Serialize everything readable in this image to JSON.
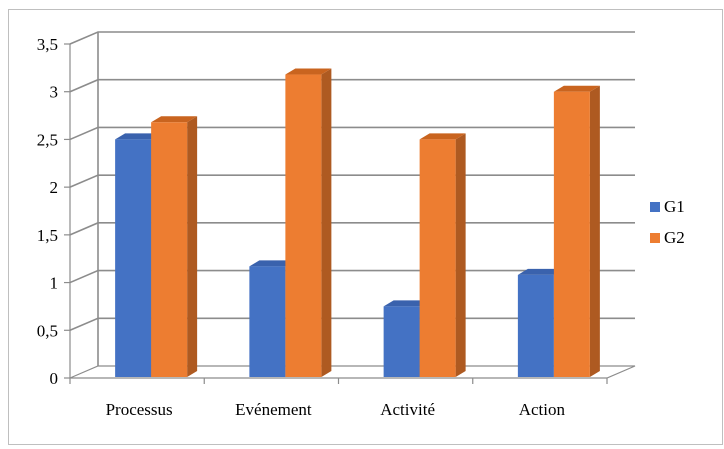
{
  "chart_data": {
    "type": "bar",
    "style": "3d-clustered-column",
    "categories": [
      "Processus",
      "Evénement",
      "Activité",
      "Action"
    ],
    "series": [
      {
        "name": "G1",
        "values": [
          2.5,
          1.17,
          0.75,
          1.08
        ],
        "color": "#4472C4",
        "side_color": "#2F528F",
        "top_color": "#3A62AD"
      },
      {
        "name": "G2",
        "values": [
          2.68,
          3.18,
          2.5,
          3.0
        ],
        "color": "#ED7D31",
        "side_color": "#AE5A21",
        "top_color": "#C9641F"
      }
    ],
    "yticks": [
      "0",
      "0,5",
      "1",
      "1,5",
      "2",
      "2,5",
      "3",
      "3,5"
    ],
    "ylim": [
      0,
      3.5
    ],
    "grid": true,
    "legend_position": "right",
    "title": "",
    "xlabel": "",
    "ylabel": ""
  }
}
